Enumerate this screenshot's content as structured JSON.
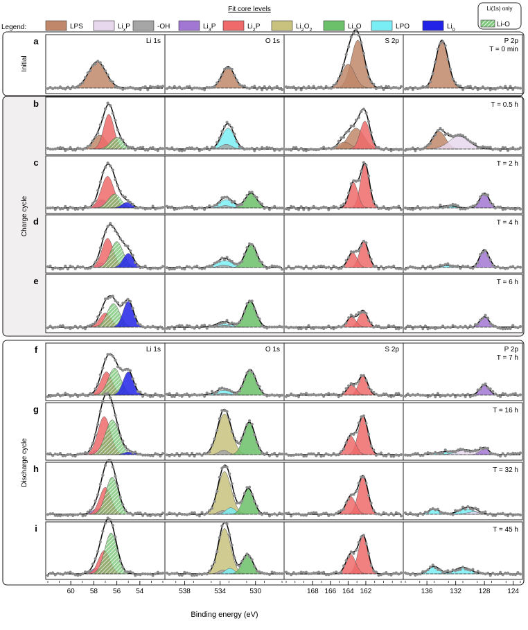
{
  "chart_data": {
    "type": "line",
    "title": "Fit core levels",
    "legend_label": "Legend:",
    "xlabel": "Binding energy (eV)",
    "ylabel": "",
    "legend": [
      {
        "name": "LPS",
        "color": "#c0876a",
        "hatched": false
      },
      {
        "name": "LixP",
        "color": "#e8d8ee",
        "hatched": false
      },
      {
        "name": "-OH",
        "color": "#a6a6a6",
        "hatched": false
      },
      {
        "name": "Li3P",
        "color": "#a277d4",
        "hatched": false
      },
      {
        "name": "Li2P",
        "color": "#ef6a6a",
        "hatched": false
      },
      {
        "name": "Li2O2",
        "color": "#c8c27e",
        "hatched": false
      },
      {
        "name": "Li2O",
        "color": "#6cc06a",
        "hatched": false
      },
      {
        "name": "LPO",
        "color": "#79eef5",
        "hatched": false
      },
      {
        "name": "Li0",
        "color": "#2323e8",
        "hatched": false
      },
      {
        "name": "Li-O",
        "color": "#6cc06a",
        "hatched": true
      }
    ],
    "legend_box_note": "Li(1s) only",
    "groups": [
      {
        "label": "Initial",
        "rows": [
          "a"
        ]
      },
      {
        "label": "Charge cycle",
        "rows": [
          "b",
          "c",
          "d",
          "e"
        ]
      },
      {
        "label": "Discharge cycle",
        "rows": [
          "f",
          "g",
          "h",
          "i"
        ]
      }
    ],
    "columns": [
      {
        "title": "Li 1s",
        "xlim": [
          62,
          52
        ],
        "ticks": [
          60,
          58,
          56,
          54
        ]
      },
      {
        "title": "O 1s",
        "xlim": [
          540,
          527
        ],
        "ticks": [
          538,
          534,
          530
        ]
      },
      {
        "title": "S 2p",
        "xlim": [
          171,
          158
        ],
        "ticks": [
          168,
          166,
          164,
          162
        ]
      },
      {
        "title": "P 2p",
        "xlim": [
          139,
          123
        ],
        "ticks": [
          136,
          132,
          128,
          124
        ]
      }
    ],
    "rows": [
      {
        "label": "a",
        "time": "T = 0 min",
        "show_titles": true,
        "panels": [
          [
            {
              "s": "LPS",
              "c": 57.7,
              "w": 0.75,
              "a": 0.55
            }
          ],
          [
            {
              "s": "LPS",
              "c": 533.1,
              "w": 0.7,
              "a": 0.45
            }
          ],
          [
            {
              "s": "LPS",
              "c": 162.9,
              "w": 0.75,
              "a": 1.0
            },
            {
              "s": "LPS",
              "c": 164.0,
              "w": 0.75,
              "a": 0.5
            }
          ],
          [
            {
              "s": "LPS",
              "c": 133.9,
              "w": 0.85,
              "a": 1.0
            }
          ]
        ]
      },
      {
        "label": "b",
        "time": "T = 0.5 h",
        "show_titles": false,
        "panels": [
          [
            {
              "s": "LPS",
              "c": 57.5,
              "w": 0.55,
              "a": 0.3
            },
            {
              "s": "Li2P",
              "c": 56.7,
              "w": 0.45,
              "a": 0.75
            },
            {
              "s": "Li-O",
              "c": 56.0,
              "w": 0.55,
              "a": 0.25
            }
          ],
          [
            {
              "s": "LPO",
              "c": 533.1,
              "w": 0.7,
              "a": 0.45
            },
            {
              "s": "-OH",
              "c": 533.3,
              "w": 0.6,
              "a": 0.1
            }
          ],
          [
            {
              "s": "LPS",
              "c": 163.1,
              "w": 0.9,
              "a": 0.45
            },
            {
              "s": "LPS",
              "c": 164.4,
              "w": 0.7,
              "a": 0.15
            },
            {
              "s": "Li2P",
              "c": 162.1,
              "w": 0.55,
              "a": 0.6
            }
          ],
          [
            {
              "s": "LPS",
              "c": 134.3,
              "w": 0.9,
              "a": 0.38
            },
            {
              "s": "LixP",
              "c": 131.5,
              "w": 1.4,
              "a": 0.28
            }
          ]
        ]
      },
      {
        "label": "c",
        "time": "T = 2 h",
        "show_titles": false,
        "panels": [
          [
            {
              "s": "Li3P",
              "c": 57.3,
              "w": 0.45,
              "a": 0.18
            },
            {
              "s": "Li2P",
              "c": 56.8,
              "w": 0.55,
              "a": 0.68
            },
            {
              "s": "Li-O",
              "c": 56.2,
              "w": 0.55,
              "a": 0.3
            },
            {
              "s": "Li0",
              "c": 55.1,
              "w": 0.45,
              "a": 0.12
            }
          ],
          [
            {
              "s": "LPO",
              "c": 533.3,
              "w": 0.8,
              "a": 0.18
            },
            {
              "s": "Li2O",
              "c": 530.5,
              "w": 0.65,
              "a": 0.32
            },
            {
              "s": "-OH",
              "c": 533.4,
              "w": 0.6,
              "a": 0.05
            }
          ],
          [
            {
              "s": "Li2P",
              "c": 162.1,
              "w": 0.5,
              "a": 0.95
            },
            {
              "s": "Li2P",
              "c": 163.4,
              "w": 0.5,
              "a": 0.55
            }
          ],
          [
            {
              "s": "LPO",
              "c": 133.0,
              "w": 1.0,
              "a": 0.05
            },
            {
              "s": "Li3P",
              "c": 128.0,
              "w": 0.65,
              "a": 0.32
            }
          ]
        ]
      },
      {
        "label": "d",
        "time": "T = 4 h",
        "show_titles": false,
        "panels": [
          [
            {
              "s": "Li3P",
              "c": 57.3,
              "w": 0.45,
              "a": 0.1
            },
            {
              "s": "Li2P",
              "c": 56.8,
              "w": 0.5,
              "a": 0.62
            },
            {
              "s": "Li-O",
              "c": 56.0,
              "w": 0.55,
              "a": 0.55
            },
            {
              "s": "Li0",
              "c": 55.0,
              "w": 0.45,
              "a": 0.3
            }
          ],
          [
            {
              "s": "LPO",
              "c": 533.5,
              "w": 0.9,
              "a": 0.15
            },
            {
              "s": "Li2O",
              "c": 530.5,
              "w": 0.65,
              "a": 0.5
            },
            {
              "s": "-OH",
              "c": 533.6,
              "w": 0.6,
              "a": 0.05
            }
          ],
          [
            {
              "s": "Li2P",
              "c": 162.2,
              "w": 0.5,
              "a": 0.55
            },
            {
              "s": "Li2P",
              "c": 163.5,
              "w": 0.5,
              "a": 0.32
            }
          ],
          [
            {
              "s": "LPO",
              "c": 133.0,
              "w": 1.0,
              "a": 0.05
            },
            {
              "s": "Li3P",
              "c": 128.0,
              "w": 0.65,
              "a": 0.38
            }
          ]
        ]
      },
      {
        "label": "e",
        "time": "T = 6 h",
        "show_titles": false,
        "panels": [
          [
            {
              "s": "Li3P",
              "c": 57.3,
              "w": 0.45,
              "a": 0.05
            },
            {
              "s": "Li2P",
              "c": 57.0,
              "w": 0.5,
              "a": 0.3
            },
            {
              "s": "Li-O",
              "c": 56.3,
              "w": 0.55,
              "a": 0.5
            },
            {
              "s": "Li0",
              "c": 55.0,
              "w": 0.45,
              "a": 0.55
            }
          ],
          [
            {
              "s": "LPO",
              "c": 533.6,
              "w": 0.9,
              "a": 0.08
            },
            {
              "s": "Li2O",
              "c": 530.6,
              "w": 0.65,
              "a": 0.55
            },
            {
              "s": "-OH",
              "c": 533.5,
              "w": 0.6,
              "a": 0.04
            }
          ],
          [
            {
              "s": "Li2P",
              "c": 162.3,
              "w": 0.5,
              "a": 0.35
            },
            {
              "s": "Li2P",
              "c": 163.6,
              "w": 0.5,
              "a": 0.22
            }
          ],
          [
            {
              "s": "Li3P",
              "c": 128.0,
              "w": 0.65,
              "a": 0.22
            }
          ]
        ]
      },
      {
        "label": "f",
        "time": "T = 7 h",
        "show_titles": true,
        "panels": [
          [
            {
              "s": "Li3P",
              "c": 57.3,
              "w": 0.45,
              "a": 0.08
            },
            {
              "s": "Li2P",
              "c": 56.9,
              "w": 0.5,
              "a": 0.5
            },
            {
              "s": "Li-O",
              "c": 56.2,
              "w": 0.55,
              "a": 0.58
            },
            {
              "s": "Li0",
              "c": 55.0,
              "w": 0.45,
              "a": 0.5
            }
          ],
          [
            {
              "s": "LPO",
              "c": 533.6,
              "w": 0.9,
              "a": 0.1
            },
            {
              "s": "Li2O",
              "c": 530.6,
              "w": 0.65,
              "a": 0.55
            },
            {
              "s": "-OH",
              "c": 533.6,
              "w": 0.6,
              "a": 0.04
            }
          ],
          [
            {
              "s": "Li2P",
              "c": 162.3,
              "w": 0.5,
              "a": 0.42
            },
            {
              "s": "Li2P",
              "c": 163.6,
              "w": 0.5,
              "a": 0.22
            }
          ],
          [
            {
              "s": "Li3P",
              "c": 128.0,
              "w": 0.65,
              "a": 0.22
            }
          ]
        ]
      },
      {
        "label": "g",
        "time": "T = 16 h",
        "show_titles": false,
        "panels": [
          [
            {
              "s": "Li3P",
              "c": 57.7,
              "w": 0.45,
              "a": 0.1
            },
            {
              "s": "Li2P",
              "c": 57.1,
              "w": 0.55,
              "a": 0.82
            },
            {
              "s": "Li-O",
              "c": 56.4,
              "w": 0.6,
              "a": 0.75
            },
            {
              "s": "Li0",
              "c": 54.9,
              "w": 0.45,
              "a": 0.06
            }
          ],
          [
            {
              "s": "Li2O2",
              "c": 533.5,
              "w": 0.8,
              "a": 0.88
            },
            {
              "s": "-OH",
              "c": 533.6,
              "w": 0.5,
              "a": 0.1
            },
            {
              "s": "Li2O",
              "c": 530.7,
              "w": 0.65,
              "a": 0.7
            }
          ],
          [
            {
              "s": "Li2P",
              "c": 162.3,
              "w": 0.55,
              "a": 0.82
            },
            {
              "s": "Li2P",
              "c": 163.7,
              "w": 0.55,
              "a": 0.4
            }
          ],
          [
            {
              "s": "LPO",
              "c": 133.5,
              "w": 1.3,
              "a": 0.06
            },
            {
              "s": "LixP",
              "c": 130.5,
              "w": 1.3,
              "a": 0.1
            },
            {
              "s": "Li3P",
              "c": 128.0,
              "w": 0.6,
              "a": 0.14
            }
          ]
        ]
      },
      {
        "label": "h",
        "time": "T = 32 h",
        "show_titles": false,
        "panels": [
          [
            {
              "s": "Li3P",
              "c": 57.7,
              "w": 0.45,
              "a": 0.12
            },
            {
              "s": "Li2P",
              "c": 57.0,
              "w": 0.5,
              "a": 0.58
            },
            {
              "s": "Li-O",
              "c": 56.4,
              "w": 0.55,
              "a": 0.8
            }
          ],
          [
            {
              "s": "Li2O2",
              "c": 533.5,
              "w": 0.75,
              "a": 0.92
            },
            {
              "s": "-OH",
              "c": 533.7,
              "w": 0.5,
              "a": 0.08
            },
            {
              "s": "LPO",
              "c": 532.8,
              "w": 0.55,
              "a": 0.14
            },
            {
              "s": "Li2O",
              "c": 530.8,
              "w": 0.6,
              "a": 0.56
            }
          ],
          [
            {
              "s": "Li2P",
              "c": 162.3,
              "w": 0.55,
              "a": 0.82
            },
            {
              "s": "Li2P",
              "c": 163.7,
              "w": 0.55,
              "a": 0.38
            }
          ],
          [
            {
              "s": "LPO",
              "c": 135.0,
              "w": 0.8,
              "a": 0.11
            },
            {
              "s": "LPO",
              "c": 130.5,
              "w": 1.1,
              "a": 0.12
            },
            {
              "s": "LixP",
              "c": 129.5,
              "w": 0.9,
              "a": 0.05
            }
          ]
        ]
      },
      {
        "label": "i",
        "time": "T = 45 h",
        "show_titles": false,
        "panels": [
          [
            {
              "s": "Li3P",
              "c": 57.8,
              "w": 0.45,
              "a": 0.12
            },
            {
              "s": "Li2P",
              "c": 57.1,
              "w": 0.5,
              "a": 0.5
            },
            {
              "s": "Li-O",
              "c": 56.5,
              "w": 0.55,
              "a": 0.88
            }
          ],
          [
            {
              "s": "Li2O2",
              "c": 533.5,
              "w": 0.7,
              "a": 0.98
            },
            {
              "s": "-OH",
              "c": 533.7,
              "w": 0.5,
              "a": 0.08
            },
            {
              "s": "LPO",
              "c": 532.9,
              "w": 0.5,
              "a": 0.12
            },
            {
              "s": "Li2O",
              "c": 530.9,
              "w": 0.6,
              "a": 0.42
            }
          ],
          [
            {
              "s": "Li2P",
              "c": 162.3,
              "w": 0.55,
              "a": 0.82
            },
            {
              "s": "Li2P",
              "c": 163.7,
              "w": 0.55,
              "a": 0.42
            }
          ],
          [
            {
              "s": "LPO",
              "c": 135.0,
              "w": 0.8,
              "a": 0.16
            },
            {
              "s": "LPO",
              "c": 131.0,
              "w": 1.1,
              "a": 0.14
            }
          ]
        ]
      }
    ]
  }
}
